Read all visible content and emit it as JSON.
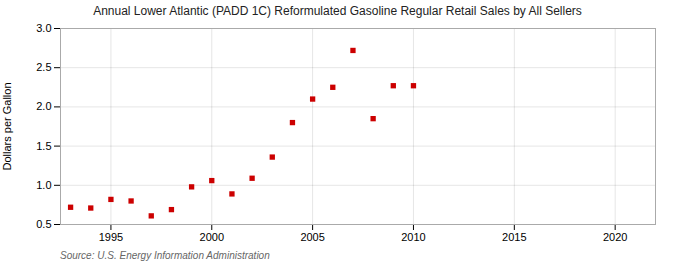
{
  "chart_data": {
    "type": "scatter",
    "title": "Annual Lower Atlantic (PADD 1C) Reformulated Gasoline Regular Retail Sales by All Sellers",
    "ylabel": "Dollars per Gallon",
    "annotations": [
      "Source: U.S. Energy Information Administration"
    ],
    "x": [
      1993,
      1994,
      1995,
      1996,
      1997,
      1998,
      1999,
      2000,
      2001,
      2002,
      2003,
      2004,
      2005,
      2006,
      2007,
      2008,
      2009,
      2010
    ],
    "values": [
      0.72,
      0.71,
      0.82,
      0.8,
      0.61,
      0.69,
      0.98,
      1.06,
      0.89,
      1.09,
      1.36,
      1.8,
      2.1,
      2.25,
      2.72,
      1.85,
      2.27,
      2.27
    ],
    "xlim": [
      1992.5,
      2022
    ],
    "ylim": [
      0.5,
      3.0
    ],
    "xticks": [
      1995,
      2000,
      2005,
      2010,
      2015,
      2020
    ],
    "yticks": [
      0.5,
      {
        "value": 1.0,
        "label": "1.0"
      },
      1.5,
      {
        "value": 2.0,
        "label": "2.0"
      },
      2.5,
      {
        "value": 3.0,
        "label": "3.0"
      }
    ],
    "color": "#cc0000",
    "marker": "square",
    "grid": true
  }
}
